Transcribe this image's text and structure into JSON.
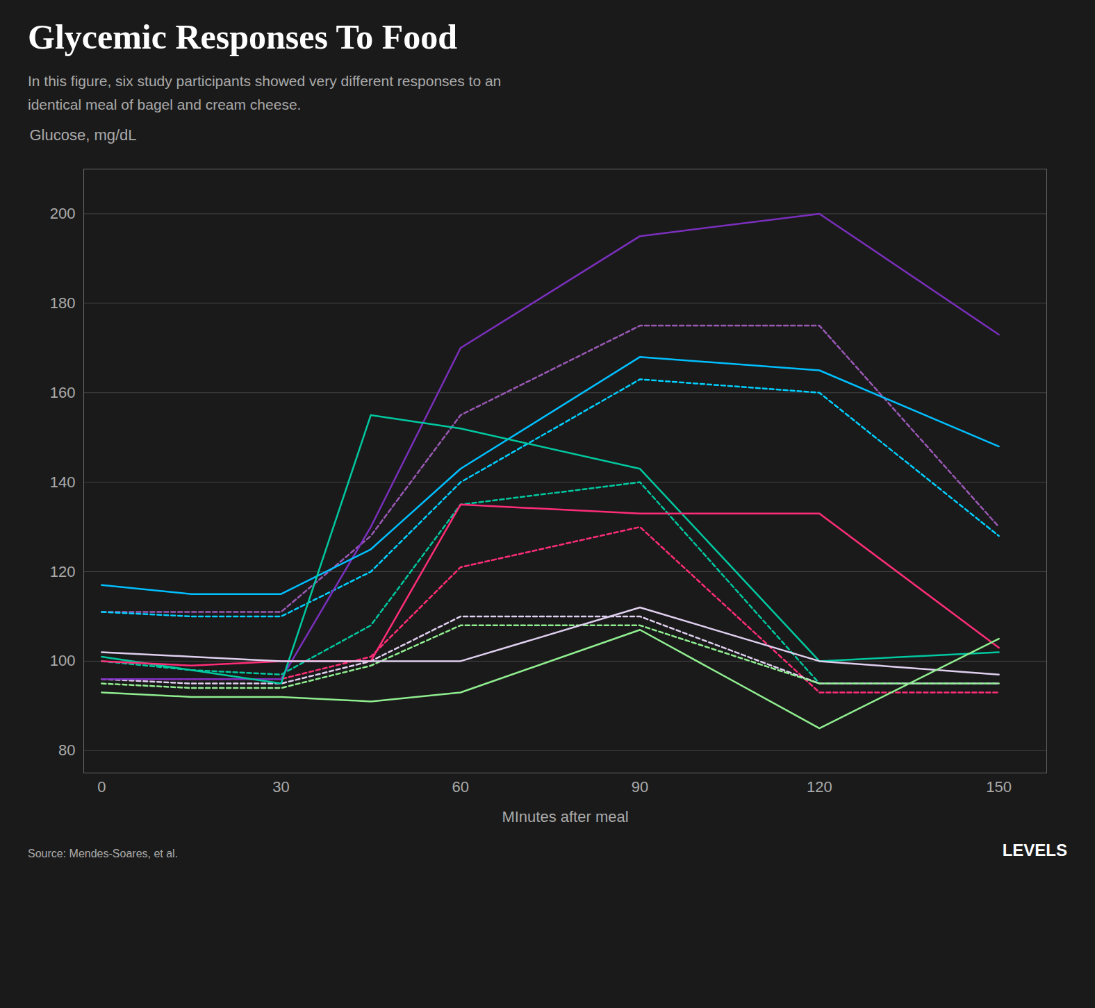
{
  "chart_data": {
    "type": "line",
    "title": "Glycemic Responses To Food",
    "subtitle": "In this figure, six study participants showed very different responses to an\nidentical meal of bagel and cream cheese.",
    "ylabel": "Glucose, mg/dL",
    "xlabel": "MInutes after meal",
    "source": "Source: Mendes-Soares, et al.",
    "annotations": [
      "LEVELS"
    ],
    "x": [
      0,
      15,
      30,
      45,
      60,
      90,
      120,
      150
    ],
    "xlim": [
      -3,
      158
    ],
    "xticks": [
      0,
      30,
      60,
      90,
      120,
      150
    ],
    "ylim": [
      75,
      210
    ],
    "yticks": [
      80,
      100,
      120,
      140,
      160,
      180,
      200
    ],
    "grid": "y",
    "series": [
      {
        "color": "#7b2fbe",
        "line_style": "solid",
        "values": [
          96,
          96,
          96,
          130,
          170,
          195,
          200,
          173
        ]
      },
      {
        "color": "#00bfff",
        "line_style": "solid",
        "values": [
          117,
          115,
          115,
          125,
          143,
          168,
          165,
          148
        ]
      },
      {
        "color": "#00c8a0",
        "line_style": "solid",
        "values": [
          101,
          98,
          95,
          155,
          152,
          143,
          100,
          102
        ]
      },
      {
        "color": "#ff2d78",
        "line_style": "solid",
        "values": [
          100,
          99,
          100,
          100,
          135,
          133,
          133,
          103
        ]
      },
      {
        "color": "#e0d0f0",
        "line_style": "solid",
        "values": [
          102,
          101,
          100,
          100,
          100,
          112,
          100,
          97
        ]
      },
      {
        "color": "#90ee90",
        "line_style": "solid",
        "values": [
          93,
          92,
          92,
          91,
          93,
          107,
          85,
          105
        ]
      },
      {
        "color": "#9b59b6",
        "line_style": "dashed",
        "values": [
          111,
          111,
          111,
          128,
          155,
          175,
          175,
          130
        ]
      },
      {
        "color": "#00cfff",
        "line_style": "dashed",
        "values": [
          111,
          110,
          110,
          120,
          140,
          163,
          160,
          128
        ]
      },
      {
        "color": "#00c8a0",
        "line_style": "dashed",
        "values": [
          100,
          98,
          97,
          108,
          135,
          140,
          95,
          95
        ]
      },
      {
        "color": "#ff2d78",
        "line_style": "dashed",
        "values": [
          96,
          96,
          96,
          101,
          121,
          130,
          93,
          93
        ]
      },
      {
        "color": "#e0d0f0",
        "line_style": "dashed",
        "values": [
          96,
          95,
          95,
          100,
          110,
          110,
          95,
          95
        ]
      },
      {
        "color": "#90ee90",
        "line_style": "dashed",
        "values": [
          95,
          94,
          94,
          99,
          108,
          108,
          95,
          95
        ]
      }
    ]
  }
}
